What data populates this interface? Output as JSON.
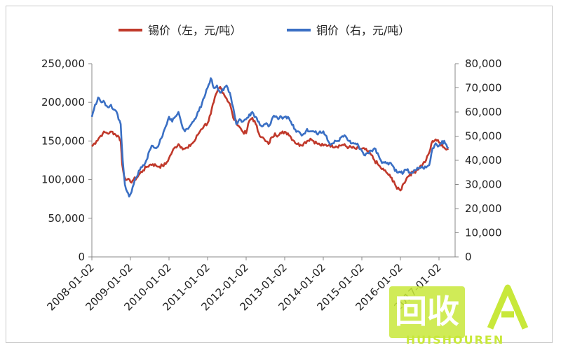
{
  "chart_data": {
    "type": "line",
    "x_ticks": [
      "2008-01-02",
      "2009-01-02",
      "2010-01-02",
      "2011-01-02",
      "2012-01-02",
      "2013-01-02",
      "2014-01-02",
      "2015-01-02",
      "2016-01-02",
      "2017-01-02"
    ],
    "x_tick_display": [
      "2008-01-02",
      "2009-01-02",
      "2010-01-02",
      "2011-01-02",
      "2012-01-02",
      "2013-01-02",
      "2014-01-02",
      "2015-01-02",
      "2016-01-02",
      "2017-01-02"
    ],
    "y_left": {
      "range": [
        0,
        250000
      ],
      "ticks": [
        "0",
        "50,000",
        "100,000",
        "150,000",
        "200,000",
        "250,000"
      ]
    },
    "y_right": {
      "range": [
        0,
        80000
      ],
      "ticks": [
        "0",
        "10,000",
        "20,000",
        "30,000",
        "40,000",
        "50,000",
        "60,000",
        "70,000",
        "80,000"
      ]
    },
    "legend_position": "top",
    "series": [
      {
        "name": "锡价（左，元/吨）",
        "axis": "left",
        "color": "#c0392b",
        "points": [
          [
            "2008-01-02",
            143000
          ],
          [
            "2008-02-15",
            150000
          ],
          [
            "2008-03-15",
            155000
          ],
          [
            "2008-04-15",
            160000
          ],
          [
            "2008-05-15",
            161000
          ],
          [
            "2008-06-15",
            160000
          ],
          [
            "2008-07-15",
            162000
          ],
          [
            "2008-08-15",
            158000
          ],
          [
            "2008-09-15",
            155000
          ],
          [
            "2008-10-01",
            150000
          ],
          [
            "2008-10-15",
            120000
          ],
          [
            "2008-11-01",
            105000
          ],
          [
            "2008-12-01",
            100000
          ],
          [
            "2009-01-02",
            97000
          ],
          [
            "2009-02-01",
            100000
          ],
          [
            "2009-03-01",
            102000
          ],
          [
            "2009-04-01",
            108000
          ],
          [
            "2009-05-01",
            112000
          ],
          [
            "2009-06-01",
            116000
          ],
          [
            "2009-07-01",
            119000
          ],
          [
            "2009-08-01",
            120000
          ],
          [
            "2009-09-01",
            118000
          ],
          [
            "2009-10-01",
            117000
          ],
          [
            "2009-11-01",
            118000
          ],
          [
            "2009-12-01",
            120000
          ],
          [
            "2010-01-02",
            128000
          ],
          [
            "2010-02-01",
            136000
          ],
          [
            "2010-03-01",
            142000
          ],
          [
            "2010-04-01",
            146000
          ],
          [
            "2010-05-01",
            142000
          ],
          [
            "2010-06-01",
            140000
          ],
          [
            "2010-07-01",
            141000
          ],
          [
            "2010-08-01",
            146000
          ],
          [
            "2010-09-01",
            150000
          ],
          [
            "2010-10-01",
            158000
          ],
          [
            "2010-11-01",
            165000
          ],
          [
            "2010-12-01",
            170000
          ],
          [
            "2011-01-02",
            173000
          ],
          [
            "2011-02-01",
            185000
          ],
          [
            "2011-03-01",
            200000
          ],
          [
            "2011-04-01",
            213000
          ],
          [
            "2011-05-01",
            220000
          ],
          [
            "2011-06-01",
            212000
          ],
          [
            "2011-07-01",
            205000
          ],
          [
            "2011-08-01",
            198000
          ],
          [
            "2011-09-01",
            180000
          ],
          [
            "2011-10-01",
            175000
          ],
          [
            "2011-11-01",
            168000
          ],
          [
            "2011-12-01",
            162000
          ],
          [
            "2012-01-02",
            160000
          ],
          [
            "2012-02-01",
            176000
          ],
          [
            "2012-03-01",
            180000
          ],
          [
            "2012-04-01",
            172000
          ],
          [
            "2012-05-01",
            160000
          ],
          [
            "2012-06-01",
            155000
          ],
          [
            "2012-07-01",
            150000
          ],
          [
            "2012-08-01",
            146000
          ],
          [
            "2012-09-01",
            155000
          ],
          [
            "2012-10-01",
            160000
          ],
          [
            "2012-11-01",
            157000
          ],
          [
            "2012-12-01",
            160000
          ],
          [
            "2013-01-02",
            162000
          ],
          [
            "2013-02-01",
            160000
          ],
          [
            "2013-03-01",
            155000
          ],
          [
            "2013-04-01",
            150000
          ],
          [
            "2013-05-01",
            146000
          ],
          [
            "2013-06-01",
            145000
          ],
          [
            "2013-07-01",
            147000
          ],
          [
            "2013-08-01",
            150000
          ],
          [
            "2013-09-01",
            153000
          ],
          [
            "2013-10-01",
            150000
          ],
          [
            "2013-11-01",
            147000
          ],
          [
            "2013-12-01",
            145000
          ],
          [
            "2014-01-02",
            144000
          ],
          [
            "2014-03-01",
            145000
          ],
          [
            "2014-05-01",
            143000
          ],
          [
            "2014-07-01",
            145000
          ],
          [
            "2014-09-01",
            142000
          ],
          [
            "2014-11-01",
            140000
          ],
          [
            "2015-01-02",
            140000
          ],
          [
            "2015-02-01",
            139000
          ],
          [
            "2015-03-01",
            136000
          ],
          [
            "2015-04-01",
            132000
          ],
          [
            "2015-05-01",
            125000
          ],
          [
            "2015-06-01",
            120000
          ],
          [
            "2015-07-01",
            115000
          ],
          [
            "2015-08-01",
            112000
          ],
          [
            "2015-09-01",
            108000
          ],
          [
            "2015-10-01",
            103000
          ],
          [
            "2015-11-01",
            98000
          ],
          [
            "2015-12-01",
            88000
          ],
          [
            "2016-01-02",
            86000
          ],
          [
            "2016-02-01",
            95000
          ],
          [
            "2016-03-01",
            102000
          ],
          [
            "2016-04-01",
            107000
          ],
          [
            "2016-05-01",
            109000
          ],
          [
            "2016-06-01",
            112000
          ],
          [
            "2016-07-01",
            116000
          ],
          [
            "2016-08-01",
            120000
          ],
          [
            "2016-09-01",
            125000
          ],
          [
            "2016-10-01",
            135000
          ],
          [
            "2016-11-01",
            150000
          ],
          [
            "2016-12-01",
            152000
          ],
          [
            "2017-01-02",
            148000
          ],
          [
            "2017-02-01",
            145000
          ],
          [
            "2017-03-01",
            140000
          ],
          [
            "2017-04-01",
            140000
          ]
        ]
      },
      {
        "name": "铜价（右，元/吨）",
        "axis": "right",
        "color": "#3a6fc4",
        "points": [
          [
            "2008-01-02",
            58000
          ],
          [
            "2008-02-01",
            63000
          ],
          [
            "2008-03-01",
            66000
          ],
          [
            "2008-04-01",
            64000
          ],
          [
            "2008-05-01",
            64000
          ],
          [
            "2008-06-01",
            62000
          ],
          [
            "2008-07-01",
            63000
          ],
          [
            "2008-08-01",
            61000
          ],
          [
            "2008-09-01",
            59000
          ],
          [
            "2008-10-01",
            55000
          ],
          [
            "2008-10-20",
            40000
          ],
          [
            "2008-11-10",
            30000
          ],
          [
            "2008-12-01",
            27000
          ],
          [
            "2008-12-20",
            25000
          ],
          [
            "2009-01-02",
            26000
          ],
          [
            "2009-02-01",
            30000
          ],
          [
            "2009-03-01",
            33000
          ],
          [
            "2009-04-01",
            36000
          ],
          [
            "2009-05-01",
            38000
          ],
          [
            "2009-06-01",
            40000
          ],
          [
            "2009-07-01",
            44000
          ],
          [
            "2009-08-01",
            46000
          ],
          [
            "2009-09-01",
            45000
          ],
          [
            "2009-10-01",
            47000
          ],
          [
            "2009-11-01",
            50000
          ],
          [
            "2009-12-01",
            54000
          ],
          [
            "2010-01-02",
            58000
          ],
          [
            "2010-02-01",
            56000
          ],
          [
            "2010-03-01",
            58000
          ],
          [
            "2010-04-01",
            60000
          ],
          [
            "2010-05-01",
            55000
          ],
          [
            "2010-06-01",
            52000
          ],
          [
            "2010-07-01",
            53000
          ],
          [
            "2010-08-01",
            55000
          ],
          [
            "2010-09-01",
            57000
          ],
          [
            "2010-10-01",
            60000
          ],
          [
            "2010-11-01",
            62000
          ],
          [
            "2010-12-01",
            66000
          ],
          [
            "2011-01-02",
            70000
          ],
          [
            "2011-02-01",
            74000
          ],
          [
            "2011-03-01",
            70000
          ],
          [
            "2011-04-01",
            71000
          ],
          [
            "2011-05-01",
            68000
          ],
          [
            "2011-06-01",
            69000
          ],
          [
            "2011-07-01",
            71000
          ],
          [
            "2011-08-01",
            68000
          ],
          [
            "2011-09-01",
            62000
          ],
          [
            "2011-10-01",
            55000
          ],
          [
            "2011-11-01",
            57000
          ],
          [
            "2011-12-01",
            56000
          ],
          [
            "2012-01-02",
            57000
          ],
          [
            "2012-02-01",
            59000
          ],
          [
            "2012-03-01",
            60000
          ],
          [
            "2012-04-01",
            58000
          ],
          [
            "2012-05-01",
            56000
          ],
          [
            "2012-06-01",
            54000
          ],
          [
            "2012-07-01",
            55000
          ],
          [
            "2012-08-01",
            54000
          ],
          [
            "2012-09-01",
            57000
          ],
          [
            "2012-10-01",
            58000
          ],
          [
            "2012-11-01",
            57000
          ],
          [
            "2012-12-01",
            58000
          ],
          [
            "2013-01-02",
            58000
          ],
          [
            "2013-02-01",
            58000
          ],
          [
            "2013-03-01",
            56000
          ],
          [
            "2013-04-01",
            53000
          ],
          [
            "2013-05-01",
            52000
          ],
          [
            "2013-06-01",
            51000
          ],
          [
            "2013-07-01",
            51000
          ],
          [
            "2013-08-01",
            53000
          ],
          [
            "2013-09-01",
            52000
          ],
          [
            "2013-10-01",
            52000
          ],
          [
            "2013-11-01",
            51000
          ],
          [
            "2013-12-01",
            52000
          ],
          [
            "2014-01-02",
            52000
          ],
          [
            "2014-02-01",
            50000
          ],
          [
            "2014-03-01",
            47000
          ],
          [
            "2014-04-01",
            47000
          ],
          [
            "2014-05-01",
            48000
          ],
          [
            "2014-06-01",
            48000
          ],
          [
            "2014-07-01",
            50000
          ],
          [
            "2014-08-01",
            50000
          ],
          [
            "2014-09-01",
            48000
          ],
          [
            "2014-10-01",
            47000
          ],
          [
            "2014-11-01",
            47000
          ],
          [
            "2014-12-01",
            46000
          ],
          [
            "2015-01-02",
            44000
          ],
          [
            "2015-02-01",
            42000
          ],
          [
            "2015-03-01",
            43000
          ],
          [
            "2015-04-01",
            44000
          ],
          [
            "2015-05-01",
            45000
          ],
          [
            "2015-06-01",
            43000
          ],
          [
            "2015-07-01",
            40000
          ],
          [
            "2015-08-01",
            39000
          ],
          [
            "2015-09-01",
            39000
          ],
          [
            "2015-10-01",
            39000
          ],
          [
            "2015-11-01",
            37000
          ],
          [
            "2015-12-01",
            35000
          ],
          [
            "2016-01-02",
            35000
          ],
          [
            "2016-02-01",
            35000
          ],
          [
            "2016-03-01",
            36000
          ],
          [
            "2016-04-01",
            35000
          ],
          [
            "2016-05-01",
            35000
          ],
          [
            "2016-06-01",
            36000
          ],
          [
            "2016-07-01",
            37000
          ],
          [
            "2016-08-01",
            37000
          ],
          [
            "2016-09-01",
            37000
          ],
          [
            "2016-10-01",
            38000
          ],
          [
            "2016-11-01",
            45000
          ],
          [
            "2016-12-01",
            47000
          ],
          [
            "2017-01-02",
            46000
          ],
          [
            "2017-02-01",
            48000
          ],
          [
            "2017-03-01",
            47000
          ],
          [
            "2017-04-01",
            45000
          ]
        ]
      }
    ]
  },
  "watermark": {
    "text": "回收",
    "subtext": "HUISHOUREN",
    "color": "#c8e83a"
  }
}
